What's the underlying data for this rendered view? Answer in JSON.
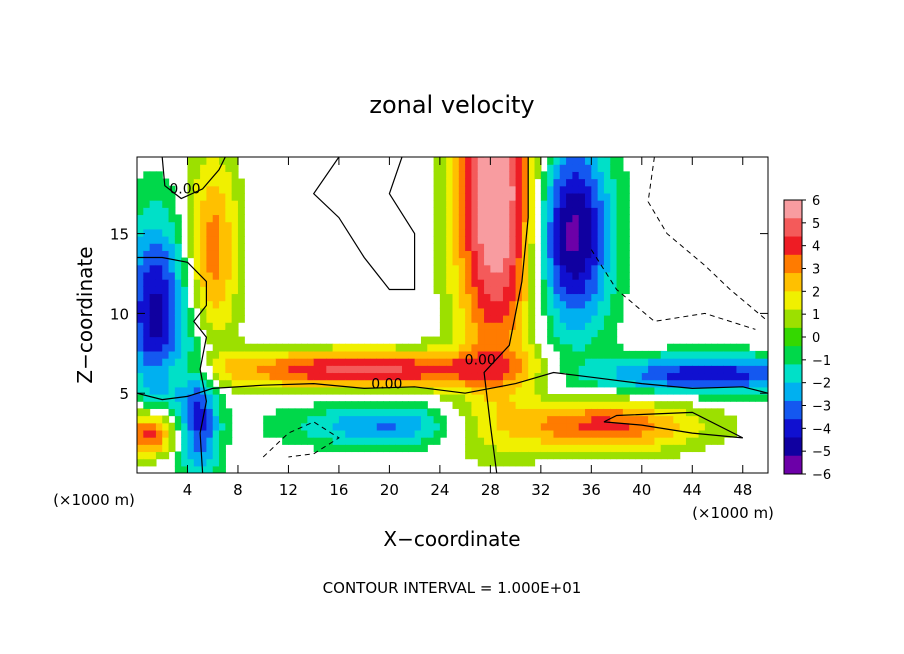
{
  "chart_data": {
    "type": "heatmap",
    "title": "zonal velocity",
    "xlabel": "X−coordinate",
    "ylabel": "Z−coordinate",
    "x_unit_left": "(×1000 m)",
    "x_unit_right": "(×1000 m)",
    "footer": "CONTOUR INTERVAL = 1.000E+01",
    "xlim": [
      0,
      50
    ],
    "ylim": [
      0,
      19.8
    ],
    "x_ticks": [
      4,
      8,
      12,
      16,
      20,
      24,
      28,
      32,
      36,
      40,
      44,
      48
    ],
    "x_tick_labels": [
      "4",
      "8",
      "12",
      "16",
      "20",
      "24",
      "28",
      "32",
      "36",
      "40",
      "44",
      "48"
    ],
    "y_ticks": [
      5,
      10,
      15
    ],
    "y_tick_labels": [
      "5",
      "10",
      "15"
    ],
    "colorbar": {
      "min": -6,
      "max": 6,
      "levels": [
        6,
        5,
        4,
        3,
        2,
        1,
        0,
        -1,
        -2,
        -3,
        -4,
        -5,
        -6
      ],
      "labels": [
        "6",
        "5",
        "4",
        "3",
        "2",
        "1",
        "0",
        "−1",
        "−2",
        "−3",
        "−4",
        "−5",
        "−6"
      ],
      "colors": [
        "#f89ca0",
        "#f45a5a",
        "#ee1c24",
        "#ff7b00",
        "#ffc000",
        "#f0f000",
        "#9ce000",
        "#34d800",
        "#00d84a",
        "#00e0c8",
        "#00b0f0",
        "#1458f0",
        "#1010d0",
        "#1000a0",
        "#6c00a8"
      ]
    },
    "contour_labels": [
      {
        "text": "0.00",
        "x": 3.8,
        "y": 17.5
      },
      {
        "text": "0.00",
        "x": 19.8,
        "y": 5.3
      },
      {
        "text": "0.00",
        "x": 27.2,
        "y": 6.8
      }
    ],
    "features": [
      {
        "kind": "jet",
        "sign": "positive",
        "description_x": [
          26,
          31
        ],
        "note": "vertical positive-velocity band above x≈28"
      },
      {
        "kind": "shear_layer",
        "sign": "mixed",
        "note": "zero-velocity layer near z≈5"
      }
    ]
  }
}
